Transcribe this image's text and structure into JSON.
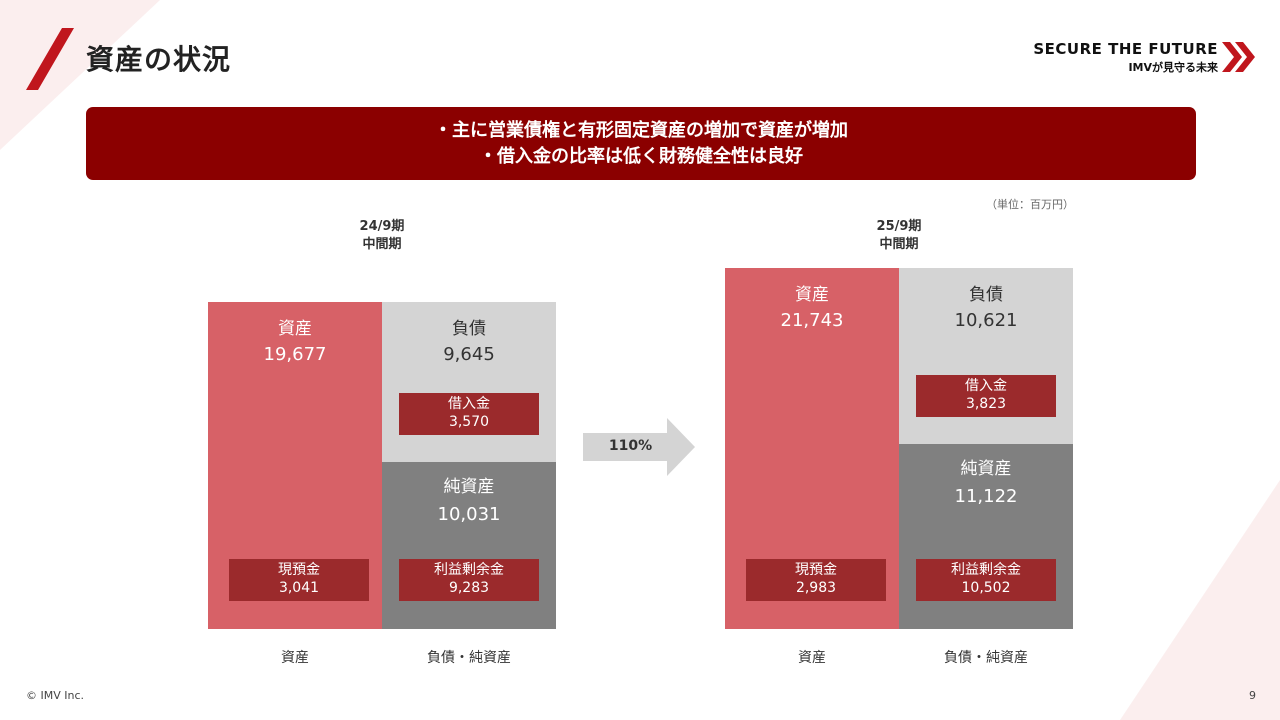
{
  "header": {
    "title": "資産の状況",
    "brand_line1": "SECURE THE FUTURE",
    "brand_line2": "IMVが見守る未来"
  },
  "banner": {
    "line1": "・主に営業債権と有形固定資産の増加で資産が増加",
    "line2": "・借入金の比率は低く財務健全性は良好"
  },
  "unit_label": "（単位：百万円）",
  "chart_data": {
    "type": "bar",
    "unit": "百万円",
    "categories": [
      "資産",
      "負債・純資産"
    ],
    "periods": [
      {
        "label_line1": "24/9期",
        "label_line2": "中間期",
        "assets": {
          "name": "資産",
          "value": 19677,
          "display": "19,677",
          "cash": {
            "name": "現預金",
            "value": 3041,
            "display": "3,041"
          }
        },
        "liabilities": {
          "name": "負債",
          "value": 9645,
          "display": "9,645",
          "borrowings": {
            "name": "借入金",
            "value": 3570,
            "display": "3,570"
          }
        },
        "net_assets": {
          "name": "純資産",
          "value": 10031,
          "display": "10,031",
          "retained_earnings": {
            "name": "利益剰余金",
            "value": 9283,
            "display": "9,283"
          }
        }
      },
      {
        "label_line1": "25/9期",
        "label_line2": "中間期",
        "assets": {
          "name": "資産",
          "value": 21743,
          "display": "21,743",
          "cash": {
            "name": "現預金",
            "value": 2983,
            "display": "2,983"
          }
        },
        "liabilities": {
          "name": "負債",
          "value": 10621,
          "display": "10,621",
          "borrowings": {
            "name": "借入金",
            "value": 3823,
            "display": "3,823"
          }
        },
        "net_assets": {
          "name": "純資産",
          "value": 11122,
          "display": "11,122",
          "retained_earnings": {
            "name": "利益剰余金",
            "value": 10502,
            "display": "10,502"
          }
        }
      }
    ],
    "growth_label": "110%"
  },
  "colors": {
    "accent": "#8b0000",
    "assets": "#d76167",
    "liabilities": "#d4d4d4",
    "net_assets": "#808080",
    "sub_box": "#9b2a2c"
  },
  "footer": {
    "copyright": "© IMV Inc.",
    "page_number": "9"
  }
}
